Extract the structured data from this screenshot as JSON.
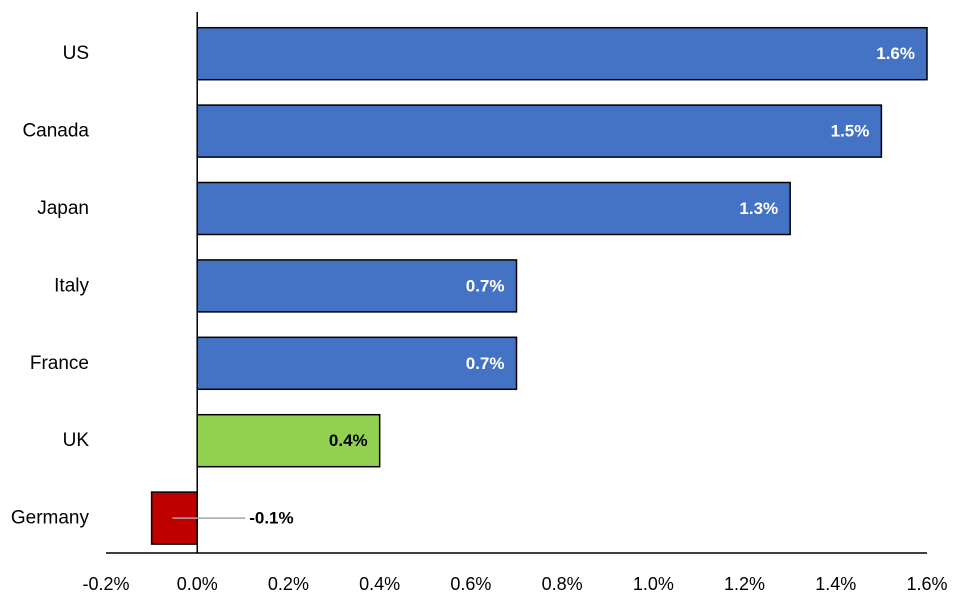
{
  "chart_data": {
    "type": "bar",
    "orientation": "horizontal",
    "title": "",
    "xlabel": "",
    "ylabel": "",
    "xlim": [
      -0.2,
      1.6
    ],
    "grid": false,
    "legend": "none",
    "categories": [
      "US",
      "Canada",
      "Japan",
      "Italy",
      "France",
      "UK",
      "Germany"
    ],
    "values": [
      1.6,
      1.5,
      1.3,
      0.7,
      0.7,
      0.4,
      -0.1
    ],
    "value_labels": [
      "1.6%",
      "1.5%",
      "1.3%",
      "0.7%",
      "0.7%",
      "0.4%",
      "-0.1%"
    ],
    "bar_colors": [
      "#4472C4",
      "#4472C4",
      "#4472C4",
      "#4472C4",
      "#4472C4",
      "#92D050",
      "#C00000"
    ],
    "label_colors": [
      "#ffffff",
      "#ffffff",
      "#ffffff",
      "#ffffff",
      "#ffffff",
      "#000000",
      "#000000"
    ],
    "x_ticks": [
      -0.2,
      0.0,
      0.2,
      0.4,
      0.6,
      0.8,
      1.0,
      1.2,
      1.4,
      1.6
    ],
    "x_tick_labels": [
      "-0.2%",
      "0.0%",
      "0.2%",
      "0.4%",
      "0.6%",
      "0.8%",
      "1.0%",
      "1.2%",
      "1.4%",
      "1.6%"
    ],
    "colors": {
      "axis": "#000000",
      "bar_outline": "#000000",
      "leader_line": "#a6a6a6"
    }
  }
}
